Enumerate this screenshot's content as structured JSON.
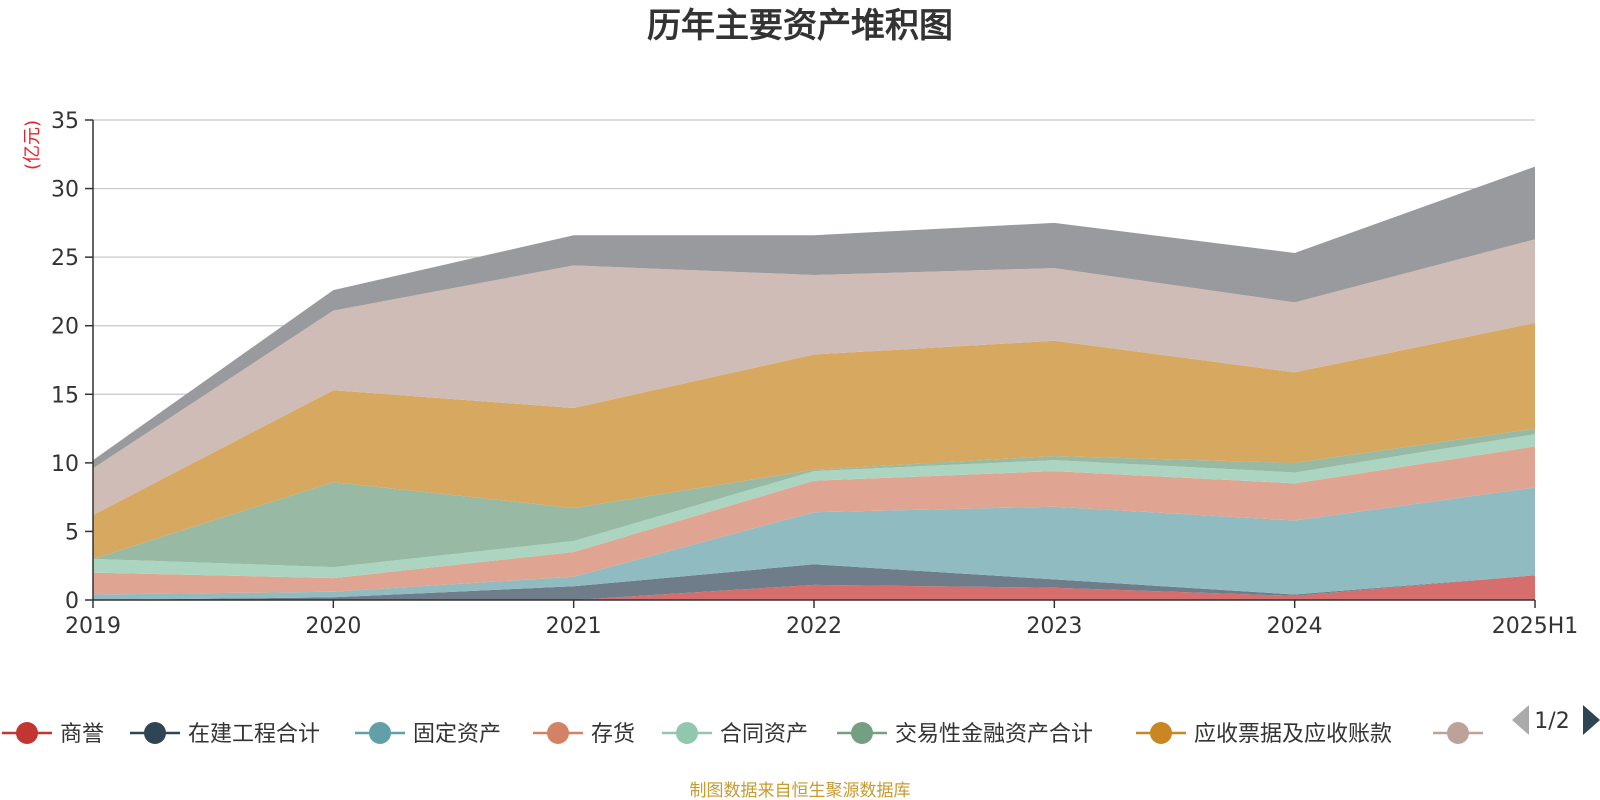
{
  "source_text": "制图数据来自恒生聚源数据库",
  "legend_page": "1/2",
  "colors": {
    "title": "#333333",
    "axis": "#333333",
    "grid": "#c8c8c8",
    "unit": "#e8222a",
    "source": "#c99a2e",
    "pager_inactive": "#aaaaaa",
    "pager_active": "#2f4554"
  },
  "chart_data": {
    "type": "area",
    "stacked": true,
    "title": "历年主要资产堆积图",
    "ylabel": "(亿元)",
    "xlabel": "",
    "ylim": [
      0,
      35
    ],
    "yticks": [
      0,
      5,
      10,
      15,
      20,
      25,
      30,
      35
    ],
    "grid": true,
    "legend_position": "bottom",
    "categories": [
      "2019",
      "2020",
      "2021",
      "2022",
      "2023",
      "2024",
      "2025H1"
    ],
    "series": [
      {
        "name": "商誉",
        "color": "#c23531",
        "fill": "#d66e6e",
        "values": [
          0,
          0,
          0,
          1.1,
          0.9,
          0.3,
          1.8
        ],
        "in_legend": true
      },
      {
        "name": "在建工程合计",
        "color": "#2f4554",
        "fill": "#6e7d89",
        "values": [
          0,
          0.2,
          1.0,
          1.5,
          0.6,
          0.1,
          0
        ],
        "in_legend": true
      },
      {
        "name": "固定资产",
        "color": "#61a0a8",
        "fill": "#8fbbc1",
        "values": [
          0.4,
          0.4,
          0.7,
          3.8,
          5.3,
          5.4,
          6.4
        ],
        "in_legend": true
      },
      {
        "name": "存货",
        "color": "#d48265",
        "fill": "#dfa592",
        "values": [
          1.6,
          1.0,
          1.8,
          2.3,
          2.6,
          2.7,
          3.0
        ],
        "in_legend": true
      },
      {
        "name": "合同资产",
        "color": "#91c7ae",
        "fill": "#acd5c1",
        "values": [
          1.0,
          0.8,
          0.8,
          0.7,
          0.8,
          0.8,
          0.9
        ],
        "in_legend": true
      },
      {
        "name": "交易性金融资产合计",
        "color": "#749f83",
        "fill": "#98b9a3",
        "values": [
          0,
          6.2,
          2.4,
          0.1,
          0.3,
          0.7,
          0.4
        ],
        "in_legend": true
      },
      {
        "name": "应收票据及应收账款",
        "color": "#ca8622",
        "fill": "#d7a860",
        "values": [
          3.2,
          6.7,
          7.3,
          8.4,
          8.4,
          6.6,
          7.7
        ],
        "in_legend": true
      },
      {
        "name": "",
        "color": "#bda29a",
        "fill": "#cfbcb6",
        "values": [
          3.4,
          5.8,
          10.4,
          5.8,
          5.3,
          5.1,
          6.1
        ],
        "in_legend": true
      },
      {
        "name": "",
        "color": "#6e7074",
        "fill": "#999a9e",
        "values": [
          0.6,
          1.5,
          2.2,
          2.9,
          3.3,
          3.6,
          5.3
        ],
        "in_legend": false
      }
    ]
  }
}
